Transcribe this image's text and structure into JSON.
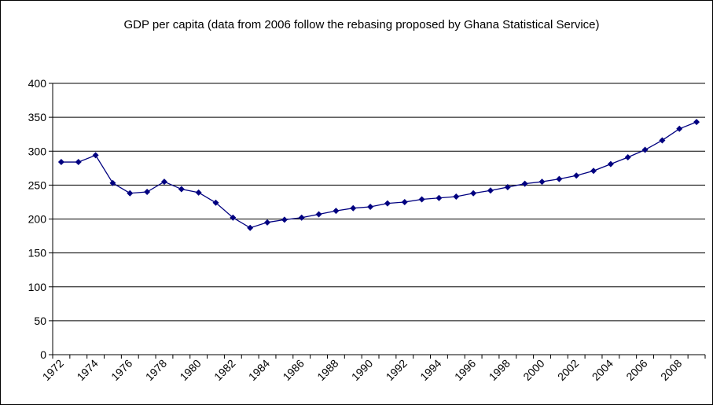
{
  "chart_data": {
    "type": "line",
    "title": "GDP per capita (data from 2006 follow the rebasing proposed by Ghana Statistical Service)",
    "xlabel": "",
    "ylabel": "",
    "ylim": [
      0,
      400
    ],
    "yticks": [
      "0",
      "50",
      "100",
      "150",
      "200",
      "250",
      "300",
      "350",
      "400"
    ],
    "xticks": [
      "1972",
      "1974",
      "1976",
      "1978",
      "1980",
      "1982",
      "1984",
      "1986",
      "1988",
      "1990",
      "1992",
      "1994",
      "1996",
      "1998",
      "2000",
      "2002",
      "2004",
      "2006",
      "2008"
    ],
    "grid": true,
    "legend": "none",
    "series": [
      {
        "color": "#000080",
        "x": [
          1972,
          1973,
          1974,
          1975,
          1976,
          1977,
          1978,
          1979,
          1980,
          1981,
          1982,
          1983,
          1984,
          1985,
          1986,
          1987,
          1988,
          1989,
          1990,
          1991,
          1992,
          1993,
          1994,
          1995,
          1996,
          1997,
          1998,
          1999,
          2000,
          2001,
          2002,
          2003,
          2004,
          2005,
          2006,
          2007,
          2008,
          2009
        ],
        "values": [
          284,
          284,
          294,
          253,
          238,
          240,
          255,
          244,
          239,
          224,
          202,
          187,
          195,
          199,
          202,
          207,
          212,
          216,
          218,
          223,
          225,
          229,
          231,
          233,
          238,
          242,
          247,
          252,
          255,
          259,
          264,
          271,
          281,
          291,
          302,
          316,
          333,
          343
        ]
      }
    ]
  }
}
